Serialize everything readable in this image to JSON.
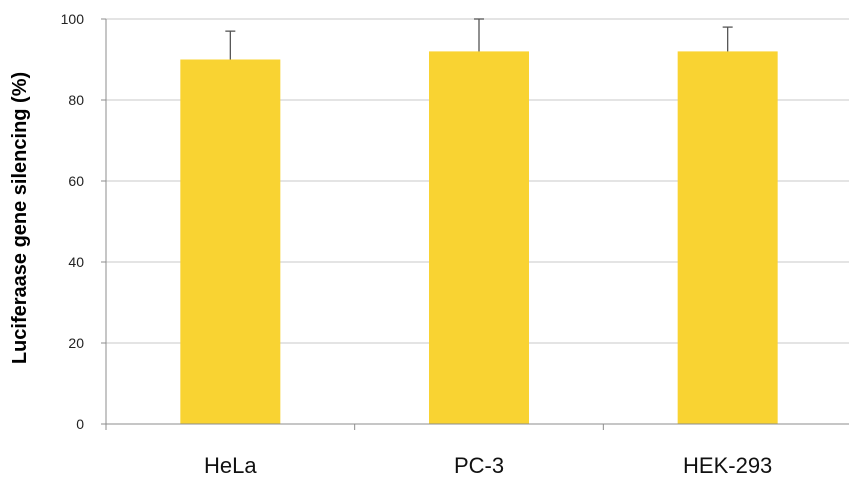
{
  "chart_data": {
    "type": "bar",
    "title": "",
    "xlabel": "",
    "ylabel": "Luciferaase gene silencing (%)",
    "categories": [
      "HeLa",
      "PC-3",
      "HEK-293"
    ],
    "values": [
      90,
      92,
      92
    ],
    "error_upper": [
      97,
      100,
      98
    ],
    "ylim": [
      0,
      100
    ],
    "yticks": [
      0,
      20,
      40,
      60,
      80,
      100
    ],
    "ytick_labels": [
      "0",
      "20",
      "40",
      "60",
      "80",
      "100"
    ],
    "grid": true,
    "legend": "none",
    "bar_color": "#f9d332",
    "gridline_color": "#c8c8c8",
    "axis_color": "#8c8c8c",
    "error_bar_color": "#555555"
  }
}
